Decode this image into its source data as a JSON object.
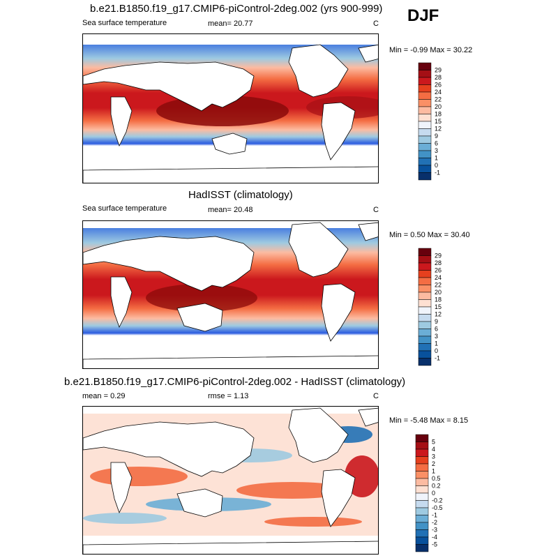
{
  "season": "DJF",
  "chart_data": [
    {
      "type": "heatmap",
      "title": "b.e21.B1850.f19_g17.CMIP6-piControl-2deg.002 (yrs 900-999)",
      "variable_label": "Sea surface temperature",
      "mean_label": "mean=",
      "mean": "20.77",
      "units": "C",
      "min_label": "Min =",
      "min": "-0.99",
      "max_label": "Max =",
      "max": "30.22",
      "colorbar_levels": [
        "29",
        "28",
        "26",
        "24",
        "22",
        "20",
        "18",
        "15",
        "12",
        "9",
        "6",
        "3",
        "1",
        "0",
        "-1"
      ],
      "colorbar_colors": [
        "#67000d",
        "#a50f15",
        "#cb181d",
        "#e6401e",
        "#f46d43",
        "#fa9066",
        "#fcbba1",
        "#fee0d2",
        "#f0f4fb",
        "#c6dbef",
        "#9ecae1",
        "#6baed6",
        "#4292c6",
        "#2171b5",
        "#08519c",
        "#08306b"
      ]
    },
    {
      "type": "heatmap",
      "title": "HadISST (climatology)",
      "variable_label": "Sea surface temperature",
      "mean_label": "mean=",
      "mean": "20.48",
      "units": "C",
      "min_label": "Min =",
      "min": "0.50",
      "max_label": "Max =",
      "max": "30.40",
      "colorbar_levels": [
        "29",
        "28",
        "26",
        "24",
        "22",
        "20",
        "18",
        "15",
        "12",
        "9",
        "6",
        "3",
        "1",
        "0",
        "-1"
      ],
      "colorbar_colors": [
        "#67000d",
        "#a50f15",
        "#cb181d",
        "#e6401e",
        "#f46d43",
        "#fa9066",
        "#fcbba1",
        "#fee0d2",
        "#f0f4fb",
        "#c6dbef",
        "#9ecae1",
        "#6baed6",
        "#4292c6",
        "#2171b5",
        "#08519c",
        "#08306b"
      ]
    },
    {
      "type": "heatmap",
      "title": "b.e21.B1850.f19_g17.CMIP6-piControl-2deg.002 - HadISST (climatology)",
      "mean_label": "mean =",
      "mean": "0.29",
      "rmse_label": "rmse =",
      "rmse": "1.13",
      "units": "C",
      "min_label": "Min =",
      "min": "-5.48",
      "max_label": "Max =",
      "max": "8.15",
      "colorbar_levels": [
        "5",
        "4",
        "3",
        "2",
        "1",
        "0.5",
        "0.2",
        "0",
        "-0.2",
        "-0.5",
        "-1",
        "-2",
        "-3",
        "-4",
        "-5"
      ],
      "colorbar_colors": [
        "#67000d",
        "#a50f15",
        "#cb181d",
        "#e6401e",
        "#f46d43",
        "#fa9066",
        "#fcbba1",
        "#fee0d2",
        "#f0f4fb",
        "#c6dbef",
        "#9ecae1",
        "#6baed6",
        "#4292c6",
        "#2171b5",
        "#08519c",
        "#08306b"
      ]
    }
  ]
}
